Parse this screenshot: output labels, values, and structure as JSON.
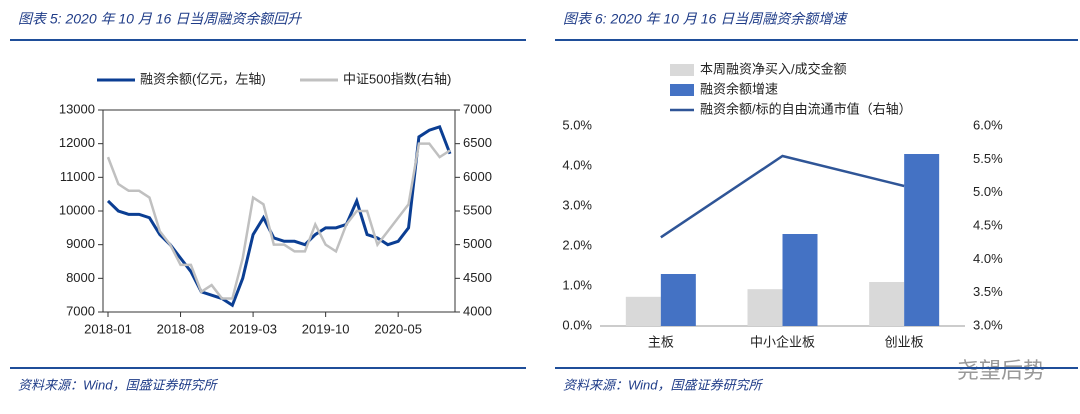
{
  "chart_data": [
    {
      "type": "line",
      "title": "图表 5:  2020 年 10 月 16 日当周融资余额回升",
      "source": "资料来源：Wind，国盛证券研究所",
      "x": [
        "2018-01",
        "2018-02",
        "2018-03",
        "2018-04",
        "2018-05",
        "2018-06",
        "2018-07",
        "2018-08",
        "2018-09",
        "2018-10",
        "2018-11",
        "2018-12",
        "2019-01",
        "2019-02",
        "2019-03",
        "2019-04",
        "2019-05",
        "2019-06",
        "2019-07",
        "2019-08",
        "2019-09",
        "2019-10",
        "2019-11",
        "2019-12",
        "2020-01",
        "2020-02",
        "2020-03",
        "2020-04",
        "2020-05",
        "2020-06",
        "2020-07",
        "2020-08",
        "2020-09",
        "2020-10"
      ],
      "xticks": [
        "2018-01",
        "2018-08",
        "2019-03",
        "2019-10",
        "2020-05"
      ],
      "ylim": [
        7000,
        13000
      ],
      "yticks": [
        7000,
        8000,
        9000,
        10000,
        11000,
        12000,
        13000
      ],
      "y2lim": [
        4000,
        7000
      ],
      "y2ticks": [
        4000,
        4500,
        5000,
        5500,
        6000,
        6500,
        7000
      ],
      "series": [
        {
          "name": "融资余额(亿元，左轴)",
          "color": "#0b3e93",
          "values": [
            10300,
            10000,
            9900,
            9900,
            9800,
            9300,
            9000,
            8600,
            8200,
            7600,
            7500,
            7400,
            7200,
            8000,
            9300,
            9800,
            9200,
            9100,
            9100,
            9000,
            9300,
            9500,
            9500,
            9600,
            10300,
            9300,
            9200,
            9000,
            9100,
            9500,
            12200,
            12400,
            12500,
            11700
          ]
        },
        {
          "name": "中证500指数(右轴)",
          "color": "#c0c0c0",
          "axis": "y2",
          "values": [
            6300,
            5900,
            5800,
            5800,
            5700,
            5200,
            5000,
            4700,
            4700,
            4300,
            4400,
            4200,
            4200,
            4800,
            5700,
            5600,
            5000,
            5000,
            4900,
            4900,
            5300,
            5000,
            4900,
            5300,
            5500,
            5500,
            5000,
            5200,
            5400,
            5600,
            6500,
            6500,
            6300,
            6400
          ]
        }
      ]
    },
    {
      "type": "bar",
      "title": "图表 6:  2020 年 10 月 16 日当周融资余额增速",
      "source": "资料来源：Wind，国盛证券研究所",
      "categories": [
        "主板",
        "中小企业板",
        "创业板"
      ],
      "ylim": [
        0,
        5
      ],
      "yticks": [
        {
          "value": 0,
          "label": "0.0%"
        },
        {
          "value": 1,
          "label": "1.0%"
        },
        {
          "value": 2,
          "label": "2.0%"
        },
        {
          "value": 3,
          "label": "3.0%"
        },
        {
          "value": 4,
          "label": "4.0%"
        },
        {
          "value": 5,
          "label": "5.0%"
        }
      ],
      "y2lim": [
        3,
        6
      ],
      "y2ticks": [
        {
          "value": 3,
          "label": "3.0%"
        },
        {
          "value": 3.5,
          "label": "3.5%"
        },
        {
          "value": 4,
          "label": "4.0%"
        },
        {
          "value": 4.5,
          "label": "4.5%"
        },
        {
          "value": 5,
          "label": "5.0%"
        },
        {
          "value": 5.5,
          "label": "5.5%"
        },
        {
          "value": 6,
          "label": "6.0%"
        }
      ],
      "series": [
        {
          "name": "本周融资净买入/成交金额",
          "color": "#d9d9d9",
          "values": [
            0.73,
            0.92,
            1.1
          ]
        },
        {
          "name": "融资余额增速",
          "color": "#4472c4",
          "values": [
            1.3,
            2.3,
            4.3
          ]
        },
        {
          "name": "融资余额/标的自由流通市值（右轴）",
          "color": "#2f5597",
          "type": "line",
          "axis": "y2",
          "values": [
            4.33,
            5.55,
            5.1
          ]
        }
      ]
    }
  ],
  "watermark": "尧望后势"
}
